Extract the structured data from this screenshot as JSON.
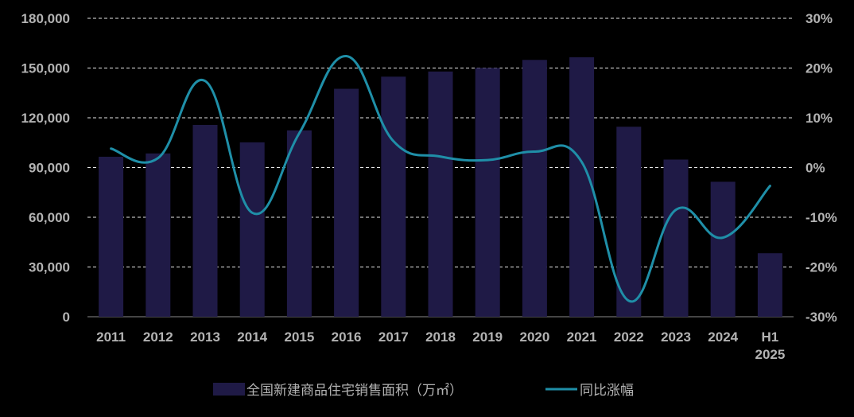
{
  "chart_data": {
    "type": "bar",
    "categories": [
      "2011",
      "2012",
      "2013",
      "2014",
      "2015",
      "2016",
      "2017",
      "2018",
      "2019",
      "2020",
      "2021",
      "2022",
      "2023",
      "2024",
      "H1\n2025"
    ],
    "series": [
      {
        "name": "全国新建商品住宅销售面积（万㎡）",
        "type": "bar",
        "axis": "left",
        "color": "#1f1a46",
        "values": [
          96500,
          98500,
          115700,
          105200,
          112400,
          137500,
          144800,
          147900,
          150100,
          154900,
          156500,
          114600,
          94800,
          81400,
          38300
        ]
      },
      {
        "name": "同比涨幅",
        "type": "line",
        "axis": "right",
        "color": "#1f8fa8",
        "values": [
          3.8,
          1.9,
          17.4,
          -9.1,
          6.9,
          22.4,
          5.3,
          2.2,
          1.5,
          3.2,
          1.1,
          -26.8,
          -8.5,
          -14.1,
          -3.7
        ]
      }
    ],
    "y_left": {
      "lim": [
        0,
        180000
      ],
      "ticks": [
        "0",
        "30,000",
        "60,000",
        "90,000",
        "120,000",
        "150,000",
        "180,000"
      ]
    },
    "y_right": {
      "lim": [
        -30,
        30
      ],
      "ticks": [
        "-30%",
        "-20%",
        "-10%",
        "0%",
        "10%",
        "20%",
        "30%"
      ]
    },
    "grid": "dashed-horizontal",
    "legend_position": "bottom",
    "background": "#000000",
    "text_color": "#b3b3b3"
  }
}
